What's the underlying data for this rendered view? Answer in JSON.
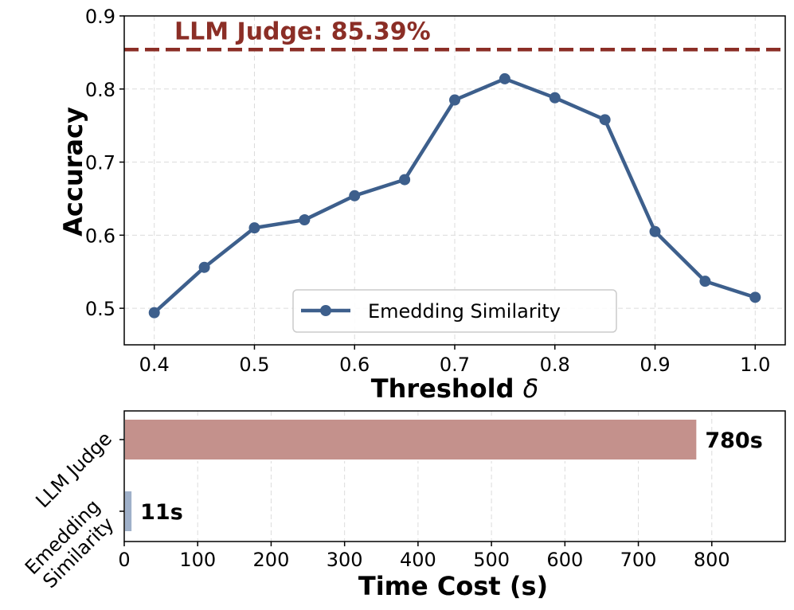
{
  "chart_data": [
    {
      "type": "line",
      "xlabel": "Threshold",
      "xlabel_symbol": "δ",
      "ylabel": "Accuracy",
      "xlim": [
        0.37,
        1.03
      ],
      "ylim": [
        0.45,
        0.9
      ],
      "xticks": [
        "0.4",
        "0.5",
        "0.6",
        "0.7",
        "0.8",
        "0.9",
        "1.0"
      ],
      "yticks": [
        "0.5",
        "0.6",
        "0.7",
        "0.8",
        "0.9"
      ],
      "grid": true,
      "legend_position": "bottom-center",
      "series": [
        {
          "name": "Emedding Similarity",
          "color": "#3d5f8c",
          "x": [
            0.4,
            0.45,
            0.5,
            0.55,
            0.6,
            0.65,
            0.7,
            0.75,
            0.8,
            0.85,
            0.9,
            0.95,
            1.0
          ],
          "y": [
            0.494,
            0.556,
            0.61,
            0.621,
            0.654,
            0.676,
            0.785,
            0.814,
            0.788,
            0.758,
            0.605,
            0.537,
            0.515
          ]
        }
      ],
      "reference_line": {
        "label": "LLM Judge: 85.39%",
        "value": 0.8539,
        "color": "#8b2e26",
        "style": "dashed"
      }
    },
    {
      "type": "bar",
      "orientation": "horizontal",
      "xlabel": "Time Cost (s)",
      "xlim": [
        0,
        900
      ],
      "xticks": [
        "0",
        "100",
        "200",
        "300",
        "400",
        "500",
        "600",
        "700",
        "800"
      ],
      "grid": true,
      "categories": [
        "LLM Judge",
        "Emedding\nSimilarity"
      ],
      "values": [
        780,
        11
      ],
      "value_labels": [
        "780s",
        "11s"
      ],
      "colors": [
        "#c4918c",
        "#9fb0c9"
      ]
    }
  ]
}
